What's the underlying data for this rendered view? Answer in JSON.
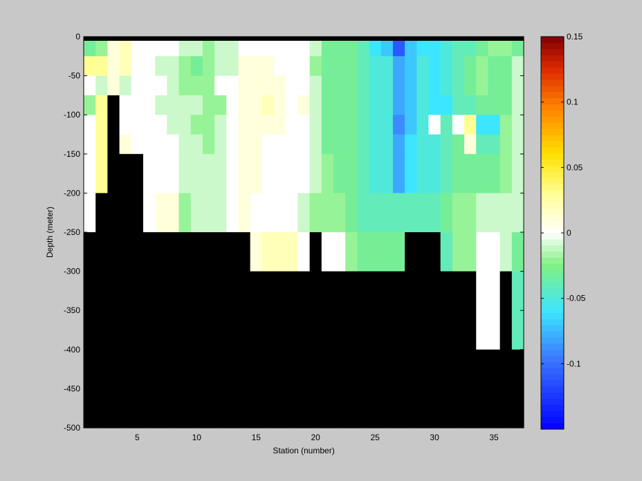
{
  "chart_data": {
    "type": "heatmap",
    "xlabel": "Station (number)",
    "ylabel": "Depth (meter)",
    "xlim": [
      1,
      38
    ],
    "ylim": [
      -500,
      0
    ],
    "x_ticks": [
      5,
      10,
      15,
      20,
      25,
      30,
      35
    ],
    "y_ticks": [
      0,
      -50,
      -100,
      -150,
      -200,
      -250,
      -300,
      -350,
      -400,
      -450,
      -500
    ],
    "colorbar": {
      "range": [
        -0.15,
        0.15
      ],
      "ticks": [
        0.15,
        0.1,
        0.05,
        0,
        -0.05,
        -0.1
      ],
      "colormap": "jet-white"
    },
    "mask_color": "#000000",
    "bin_edges_y": [
      0,
      -5,
      -25,
      -50,
      -75,
      -100,
      -125,
      -150,
      -200,
      -250,
      -300,
      -400,
      -500
    ],
    "values": [
      [
        null,
        null,
        null,
        null,
        null,
        null,
        null,
        null,
        null,
        null,
        null,
        null,
        null,
        null,
        null,
        null,
        null,
        null,
        null,
        null,
        null,
        null,
        null,
        null,
        null,
        null,
        null,
        null,
        null,
        null,
        null,
        null,
        null,
        null,
        null,
        null,
        null
      ],
      [
        -0.03,
        -0.02,
        0.01,
        0.02,
        0.0,
        0.0,
        0.0,
        0.0,
        -0.01,
        -0.01,
        -0.02,
        -0.01,
        -0.01,
        0.0,
        0.0,
        0.0,
        0.0,
        0.0,
        0.0,
        -0.01,
        -0.03,
        -0.03,
        -0.03,
        -0.04,
        -0.06,
        -0.07,
        -0.11,
        -0.07,
        -0.06,
        -0.06,
        -0.05,
        -0.04,
        -0.04,
        -0.03,
        -0.02,
        -0.02,
        -0.03
      ],
      [
        0.03,
        0.03,
        0.01,
        0.02,
        0.0,
        0.0,
        -0.01,
        -0.01,
        -0.02,
        -0.03,
        -0.02,
        -0.01,
        -0.01,
        0.01,
        0.01,
        0.01,
        0.0,
        0.0,
        0.0,
        -0.02,
        -0.03,
        -0.03,
        -0.03,
        -0.04,
        -0.05,
        -0.05,
        -0.08,
        -0.07,
        -0.05,
        -0.06,
        -0.05,
        -0.04,
        -0.03,
        -0.02,
        -0.03,
        -0.03,
        -0.01
      ],
      [
        0.0,
        -0.01,
        0.01,
        -0.01,
        0.0,
        0.0,
        0.0,
        -0.01,
        -0.02,
        -0.02,
        -0.02,
        0.0,
        0.0,
        0.01,
        0.01,
        0.01,
        0.01,
        0.0,
        0.0,
        -0.01,
        -0.03,
        -0.03,
        -0.03,
        -0.04,
        -0.05,
        -0.05,
        -0.08,
        -0.07,
        -0.05,
        -0.06,
        -0.05,
        -0.04,
        -0.03,
        -0.02,
        -0.03,
        -0.03,
        -0.01
      ],
      [
        -0.02,
        0.03,
        null,
        0.0,
        0.0,
        0.0,
        -0.01,
        -0.01,
        -0.01,
        -0.01,
        -0.02,
        -0.02,
        0.0,
        0.01,
        0.01,
        0.02,
        0.01,
        0.0,
        0.01,
        -0.01,
        -0.03,
        -0.03,
        -0.03,
        -0.04,
        -0.05,
        -0.05,
        -0.08,
        -0.07,
        -0.05,
        -0.06,
        -0.06,
        -0.04,
        -0.04,
        -0.03,
        -0.03,
        -0.03,
        -0.01
      ],
      [
        0.0,
        0.03,
        null,
        0.0,
        0.0,
        0.0,
        0.0,
        -0.01,
        -0.01,
        -0.02,
        -0.02,
        -0.01,
        0.0,
        0.01,
        0.01,
        0.01,
        0.01,
        0.0,
        0.0,
        -0.01,
        -0.03,
        -0.03,
        -0.03,
        -0.04,
        -0.05,
        -0.05,
        -0.09,
        -0.07,
        -0.05,
        0.0,
        -0.04,
        0.0,
        0.03,
        -0.06,
        -0.06,
        -0.02,
        -0.01
      ],
      [
        0.0,
        0.03,
        null,
        0.01,
        0.0,
        0.0,
        0.0,
        0.0,
        -0.01,
        -0.01,
        -0.02,
        -0.01,
        0.0,
        0.01,
        0.01,
        0.0,
        0.0,
        0.0,
        0.0,
        -0.01,
        -0.03,
        -0.03,
        -0.03,
        -0.04,
        -0.05,
        -0.05,
        -0.08,
        -0.06,
        -0.05,
        -0.05,
        -0.04,
        -0.03,
        0.01,
        -0.04,
        -0.04,
        -0.02,
        -0.01
      ],
      [
        0.0,
        0.03,
        null,
        null,
        null,
        0.0,
        0.0,
        0.0,
        -0.01,
        -0.01,
        -0.01,
        -0.01,
        0.0,
        0.01,
        0.01,
        0.0,
        0.0,
        0.0,
        0.0,
        -0.01,
        -0.02,
        -0.03,
        -0.03,
        -0.04,
        -0.05,
        -0.05,
        -0.08,
        -0.06,
        -0.05,
        -0.05,
        -0.04,
        -0.03,
        -0.03,
        -0.03,
        -0.03,
        -0.02,
        -0.01
      ],
      [
        0.0,
        null,
        null,
        null,
        null,
        0.0,
        0.01,
        0.01,
        -0.02,
        -0.01,
        -0.01,
        -0.01,
        0.0,
        0.01,
        0.0,
        0.0,
        0.0,
        0.0,
        -0.01,
        -0.02,
        -0.02,
        -0.02,
        -0.03,
        -0.04,
        -0.04,
        -0.04,
        -0.04,
        -0.04,
        -0.04,
        -0.04,
        -0.03,
        -0.02,
        -0.02,
        -0.01,
        -0.01,
        -0.01,
        -0.01
      ],
      [
        null,
        null,
        null,
        null,
        null,
        null,
        null,
        null,
        null,
        null,
        null,
        null,
        null,
        null,
        0.01,
        0.02,
        0.02,
        0.02,
        0.0,
        null,
        0.0,
        0.0,
        -0.02,
        -0.03,
        -0.03,
        -0.03,
        -0.03,
        null,
        null,
        null,
        -0.04,
        -0.02,
        -0.02,
        0.0,
        0.0,
        -0.01,
        -0.03
      ],
      [
        null,
        null,
        null,
        null,
        null,
        null,
        null,
        null,
        null,
        null,
        null,
        null,
        null,
        null,
        null,
        null,
        null,
        null,
        null,
        null,
        null,
        null,
        null,
        null,
        null,
        null,
        null,
        null,
        null,
        null,
        null,
        null,
        null,
        0.0,
        0.0,
        null,
        -0.04
      ],
      [
        null,
        null,
        null,
        null,
        null,
        null,
        null,
        null,
        null,
        null,
        null,
        null,
        null,
        null,
        null,
        null,
        null,
        null,
        null,
        null,
        null,
        null,
        null,
        null,
        null,
        null,
        null,
        null,
        null,
        null,
        null,
        null,
        null,
        null,
        null,
        null,
        null
      ]
    ]
  }
}
